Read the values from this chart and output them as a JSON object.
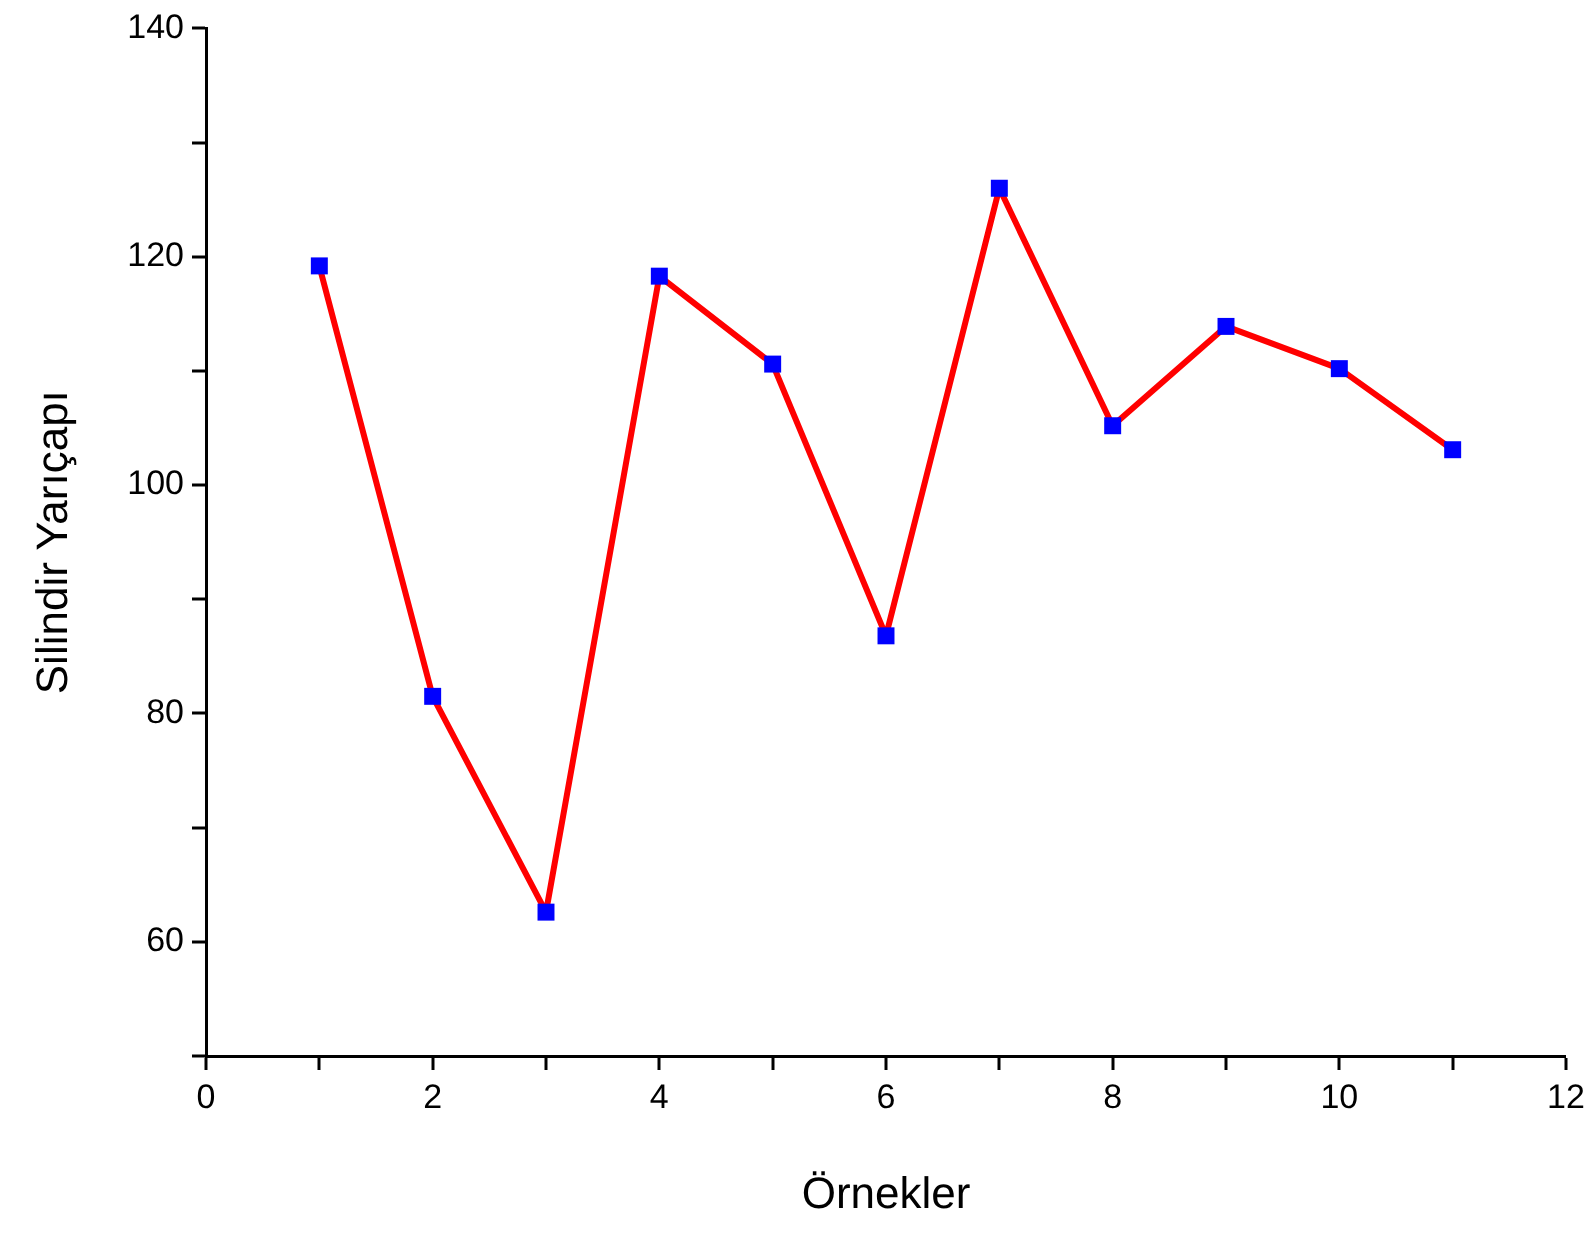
{
  "chart_data": {
    "type": "line",
    "xlabel": "Örnekler",
    "ylabel": "Silindir Yarıçapı",
    "x": [
      1,
      2,
      3,
      4,
      5,
      6,
      7,
      8,
      9,
      10,
      11
    ],
    "series": [
      {
        "color": "#ff0000",
        "colors": [
          "#0000ff",
          "#0000ff",
          "#0000ff",
          "#0000ff",
          "#0000ff",
          "#0000ff",
          "#0000ff",
          "#0000ff",
          "#0000ff",
          "#0000ff",
          "#0000ff"
        ],
        "values": [
          119.2,
          81.5,
          62.6,
          118.3,
          110.6,
          86.8,
          126.0,
          105.2,
          113.9,
          110.2,
          103.1
        ]
      }
    ],
    "xlim": [
      0,
      12
    ],
    "xticks": [
      0,
      {
        "value": 1,
        "label": null
      },
      2,
      {
        "value": 3,
        "label": null
      },
      4,
      {
        "value": 5,
        "label": null
      },
      6,
      {
        "value": 7,
        "label": null
      },
      8,
      {
        "value": 9,
        "label": null
      },
      10,
      {
        "value": 11,
        "label": null
      },
      12
    ],
    "ylim": [
      50,
      140
    ],
    "yticks": [
      {
        "value": 50,
        "label": null
      },
      60,
      {
        "value": 70,
        "label": null
      },
      80,
      {
        "value": 90,
        "label": null
      },
      100,
      {
        "value": 110,
        "label": null
      },
      120,
      {
        "value": 130,
        "label": null
      },
      140
    ],
    "marker": "square",
    "line_style": "solid",
    "grid": false,
    "legend": false
  }
}
